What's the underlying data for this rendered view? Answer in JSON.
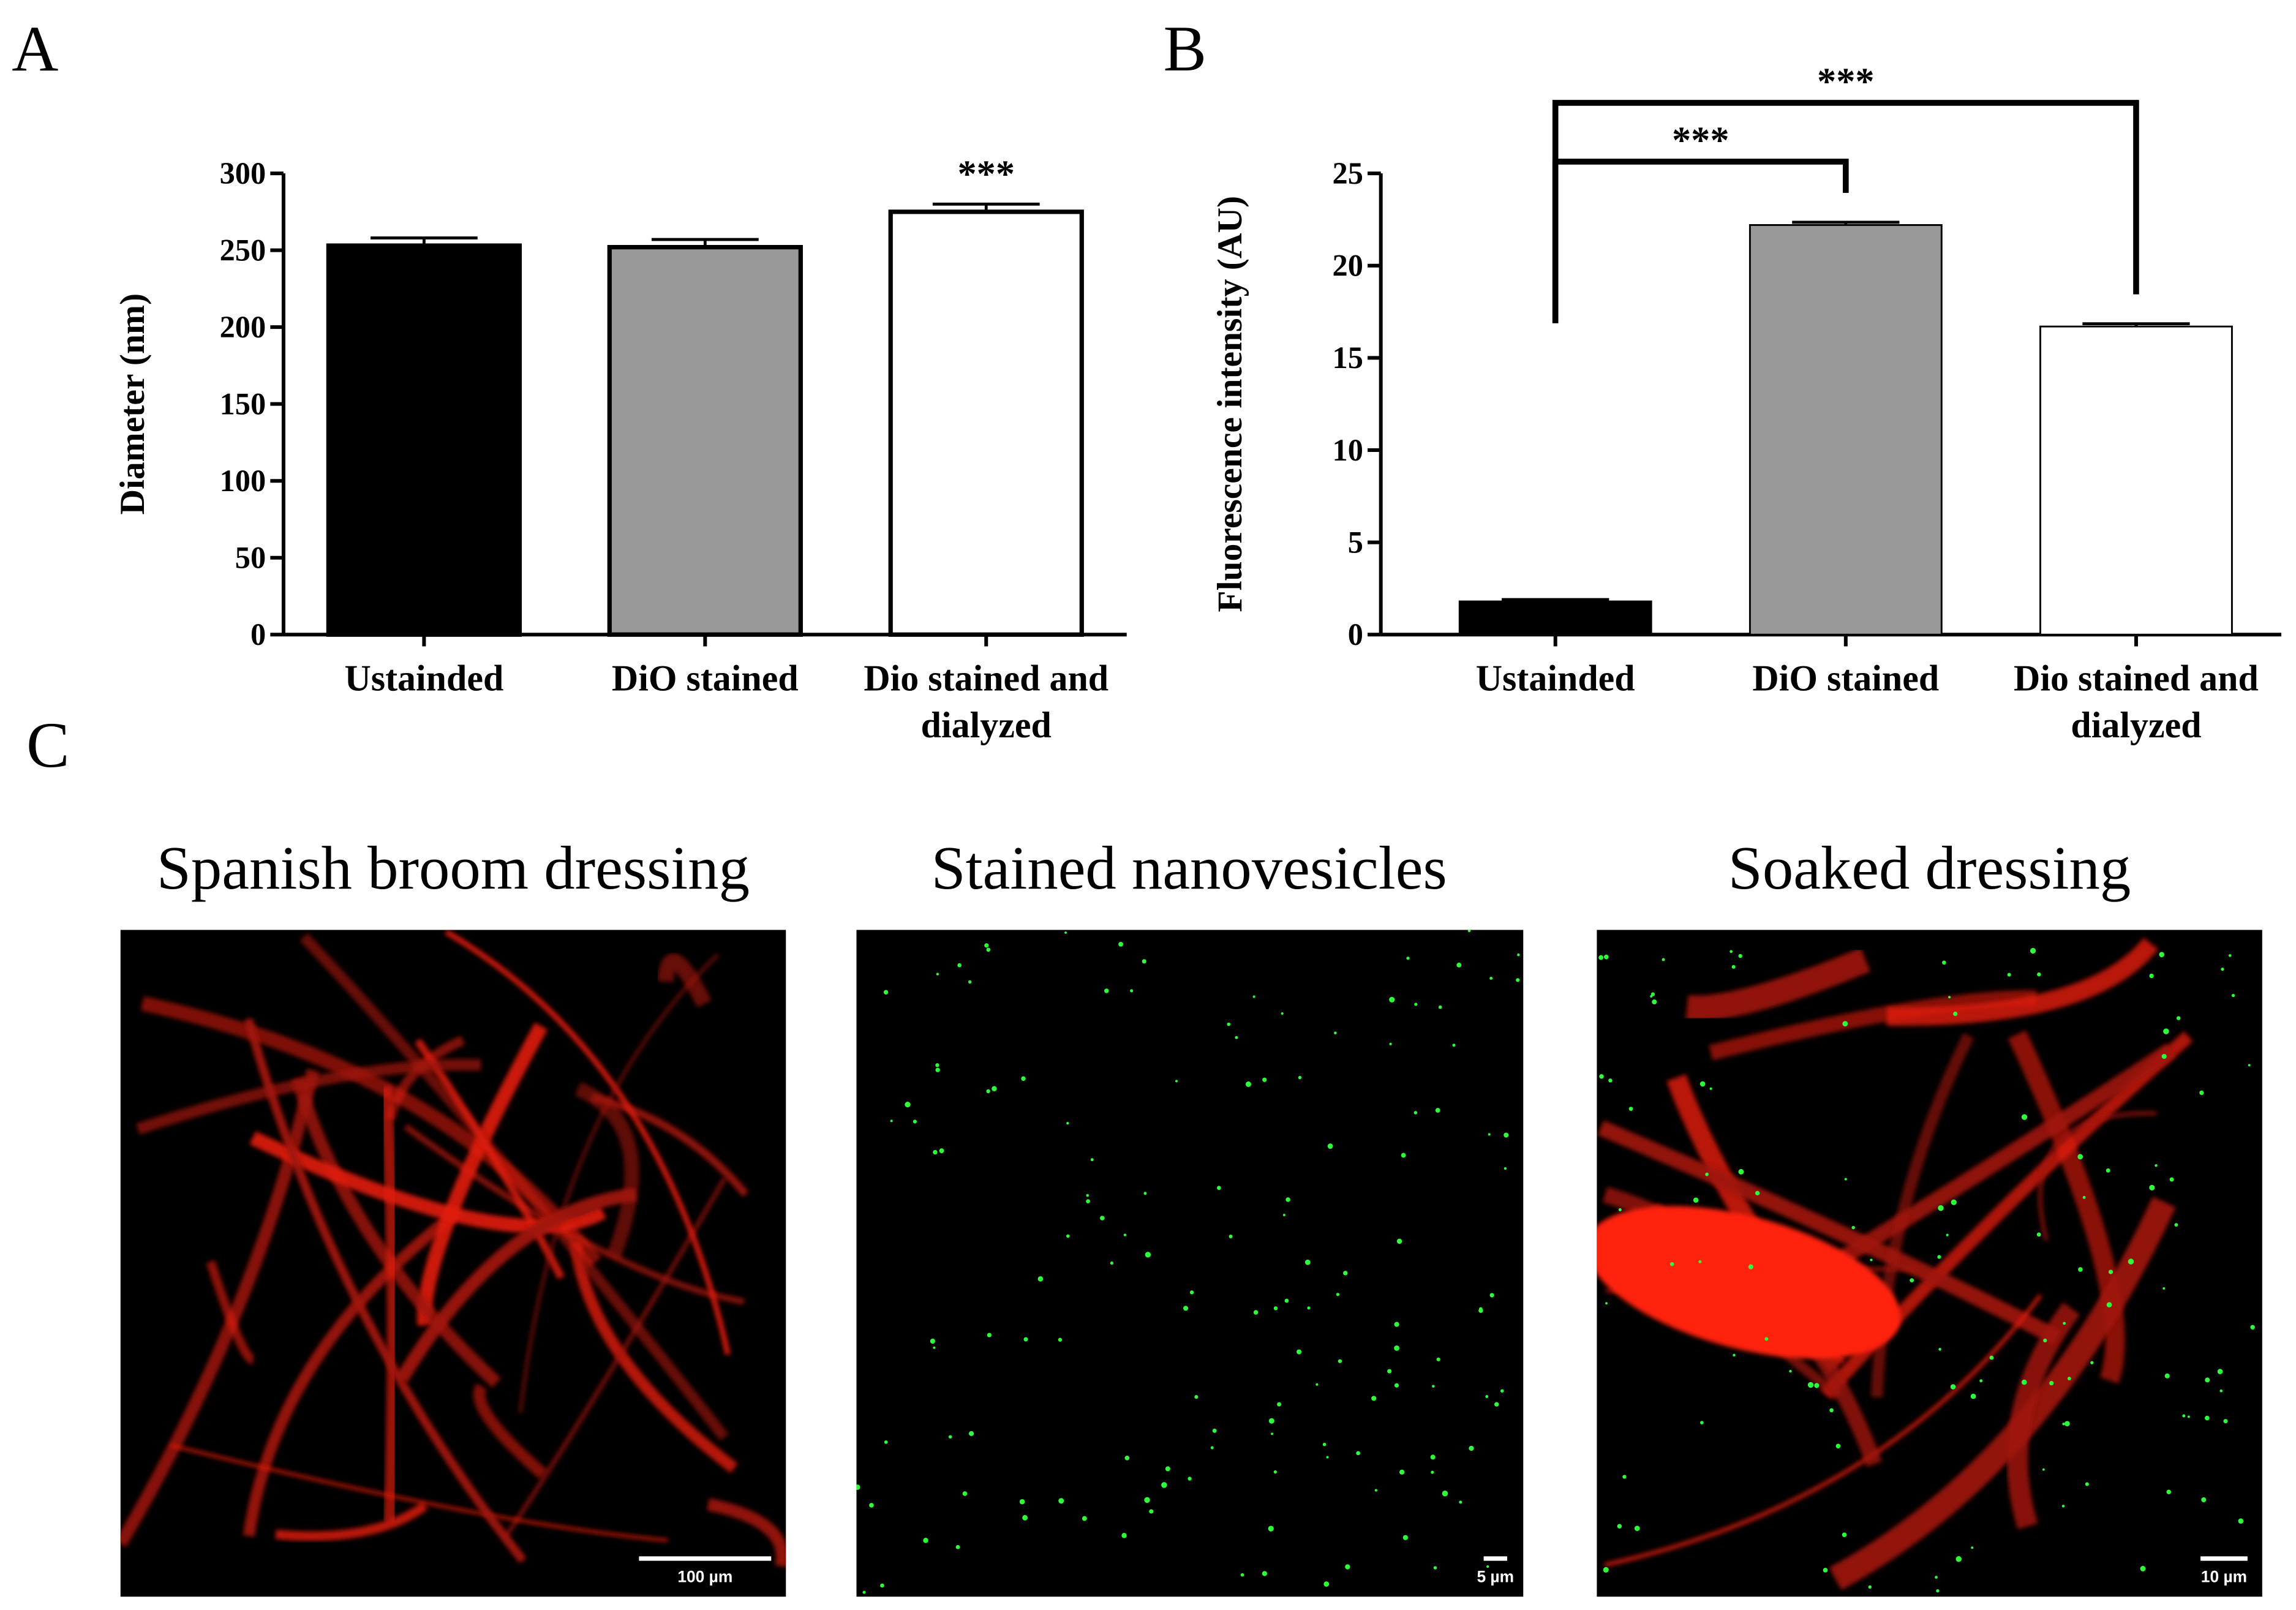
{
  "chart_data": [
    {
      "type": "bar",
      "panel": "A",
      "y_label": "Diameter (nm)",
      "categories": [
        "Ustainded",
        "DiO stained",
        "Dio stained and dialyzed"
      ],
      "values": [
        253,
        252,
        275
      ],
      "errors": [
        5,
        5,
        5
      ],
      "colors": [
        "#000000",
        "#999999",
        "#ffffff"
      ],
      "ylim": [
        0,
        300
      ],
      "yticks": [
        0,
        50,
        100,
        150,
        200,
        250,
        300
      ],
      "annotations": [
        {
          "text": "***",
          "category": 2
        }
      ]
    },
    {
      "type": "bar",
      "panel": "B",
      "y_label": "Fluorescence intensity (AU)",
      "categories": [
        "Ustainded",
        "DiO stained",
        "Dio stained and dialyzed"
      ],
      "values": [
        1.8,
        22.2,
        16.7
      ],
      "errors": [
        0.1,
        0.15,
        0.15
      ],
      "colors": [
        "#000000",
        "#999999",
        "#ffffff"
      ],
      "ylim": [
        0,
        25
      ],
      "yticks": [
        0,
        5,
        10,
        15,
        20,
        25
      ],
      "brackets": [
        {
          "text": "***",
          "between": [
            0,
            1
          ]
        },
        {
          "text": "***",
          "between": [
            0,
            2
          ]
        }
      ]
    }
  ],
  "panel_C": {
    "label": "C",
    "images": [
      {
        "title": "Spanish broom dressing",
        "scale_bar": "100 µm"
      },
      {
        "title": "Stained nanovesicles",
        "scale_bar": "5 µm"
      },
      {
        "title": "Soaked dressing",
        "scale_bar": "10 µm"
      }
    ]
  }
}
